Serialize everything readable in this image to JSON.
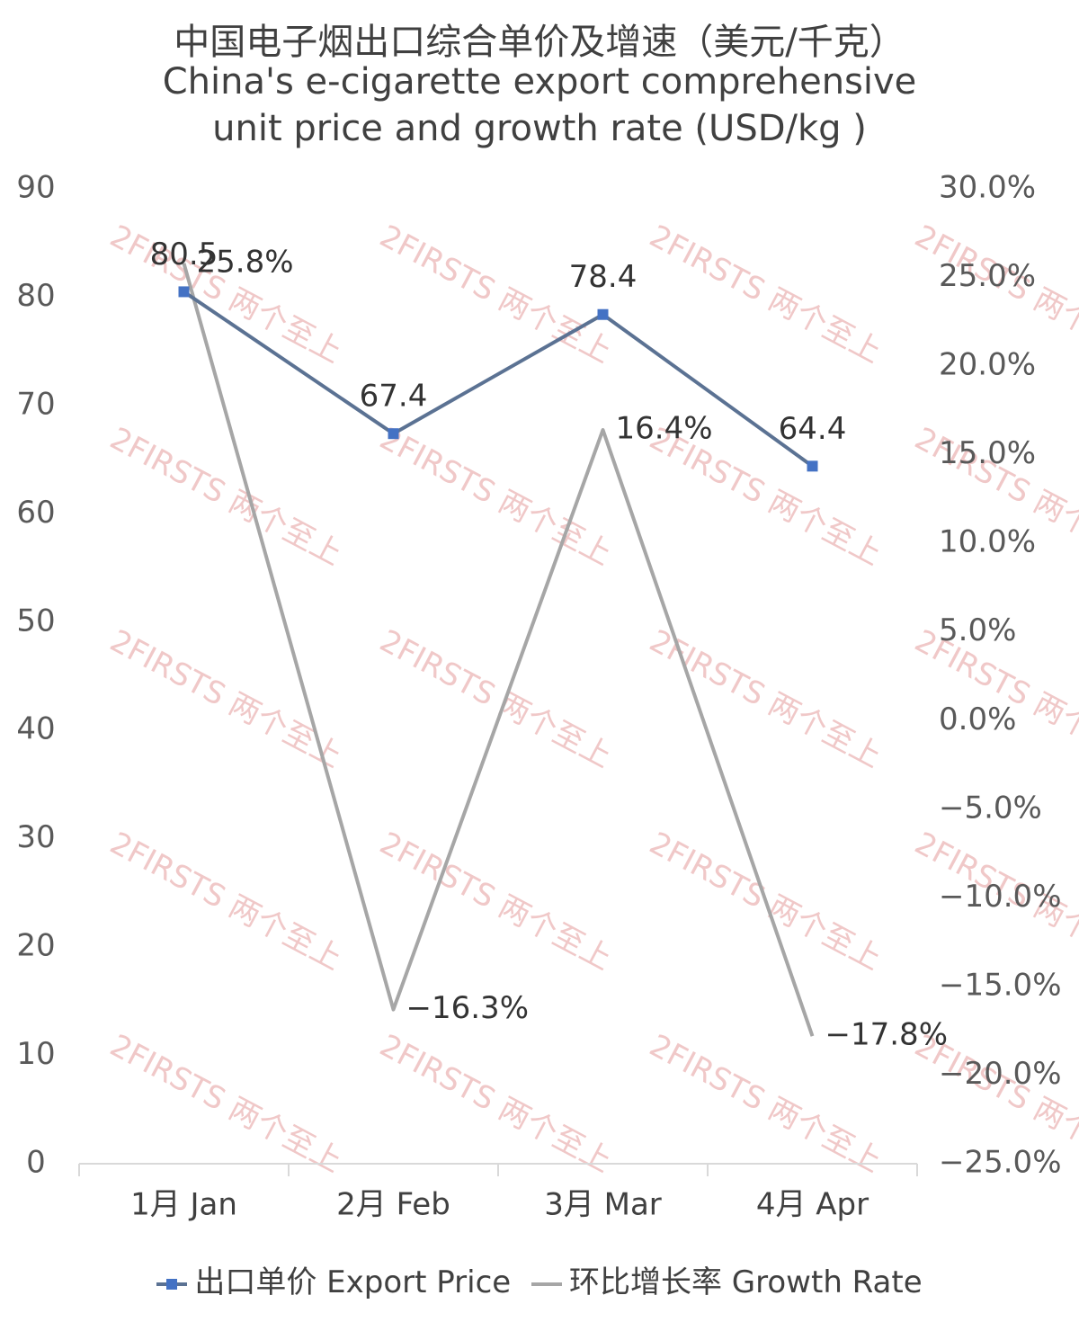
{
  "chart_data": {
    "type": "line",
    "title": "中国电子烟出口综合单价及增速（美元/千克）",
    "subtitle_lines": [
      "China's e-cigarette export comprehensive",
      "unit price and growth rate (USD/kg )"
    ],
    "categories": [
      "1月 Jan",
      "2月 Feb",
      "3月 Mar",
      "4月 Apr"
    ],
    "y_left": {
      "min": 0,
      "max": 90,
      "ticks": [
        "0",
        "10",
        "20",
        "30",
        "40",
        "50",
        "60",
        "70",
        "80",
        "90"
      ]
    },
    "y_right": {
      "min": -25,
      "max": 30,
      "unit": "%",
      "ticks": [
        "−25.0%",
        "−20.0%",
        "−15.0%",
        "−10.0%",
        "−5.0%",
        "0.0%",
        "5.0%",
        "10.0%",
        "15.0%",
        "20.0%",
        "25.0%",
        "30.0%"
      ]
    },
    "series": [
      {
        "name": "出口单价 Export Price",
        "axis": "left",
        "color": "#5b7293",
        "marker_color": "#4472c4",
        "values": [
          80.5,
          67.4,
          78.4,
          64.4
        ],
        "labels": [
          "80.5",
          "67.4",
          "78.4",
          "64.4"
        ]
      },
      {
        "name": "环比增长率 Growth Rate",
        "axis": "right",
        "color": "#a6a6a6",
        "values": [
          25.8,
          -16.3,
          16.4,
          -17.8
        ],
        "labels": [
          "25.8%",
          "−16.3%",
          "16.4%",
          "−17.8%"
        ]
      }
    ],
    "grid": false,
    "legend_position": "bottom",
    "watermark_text": "2FIRSTS 两个至上"
  }
}
